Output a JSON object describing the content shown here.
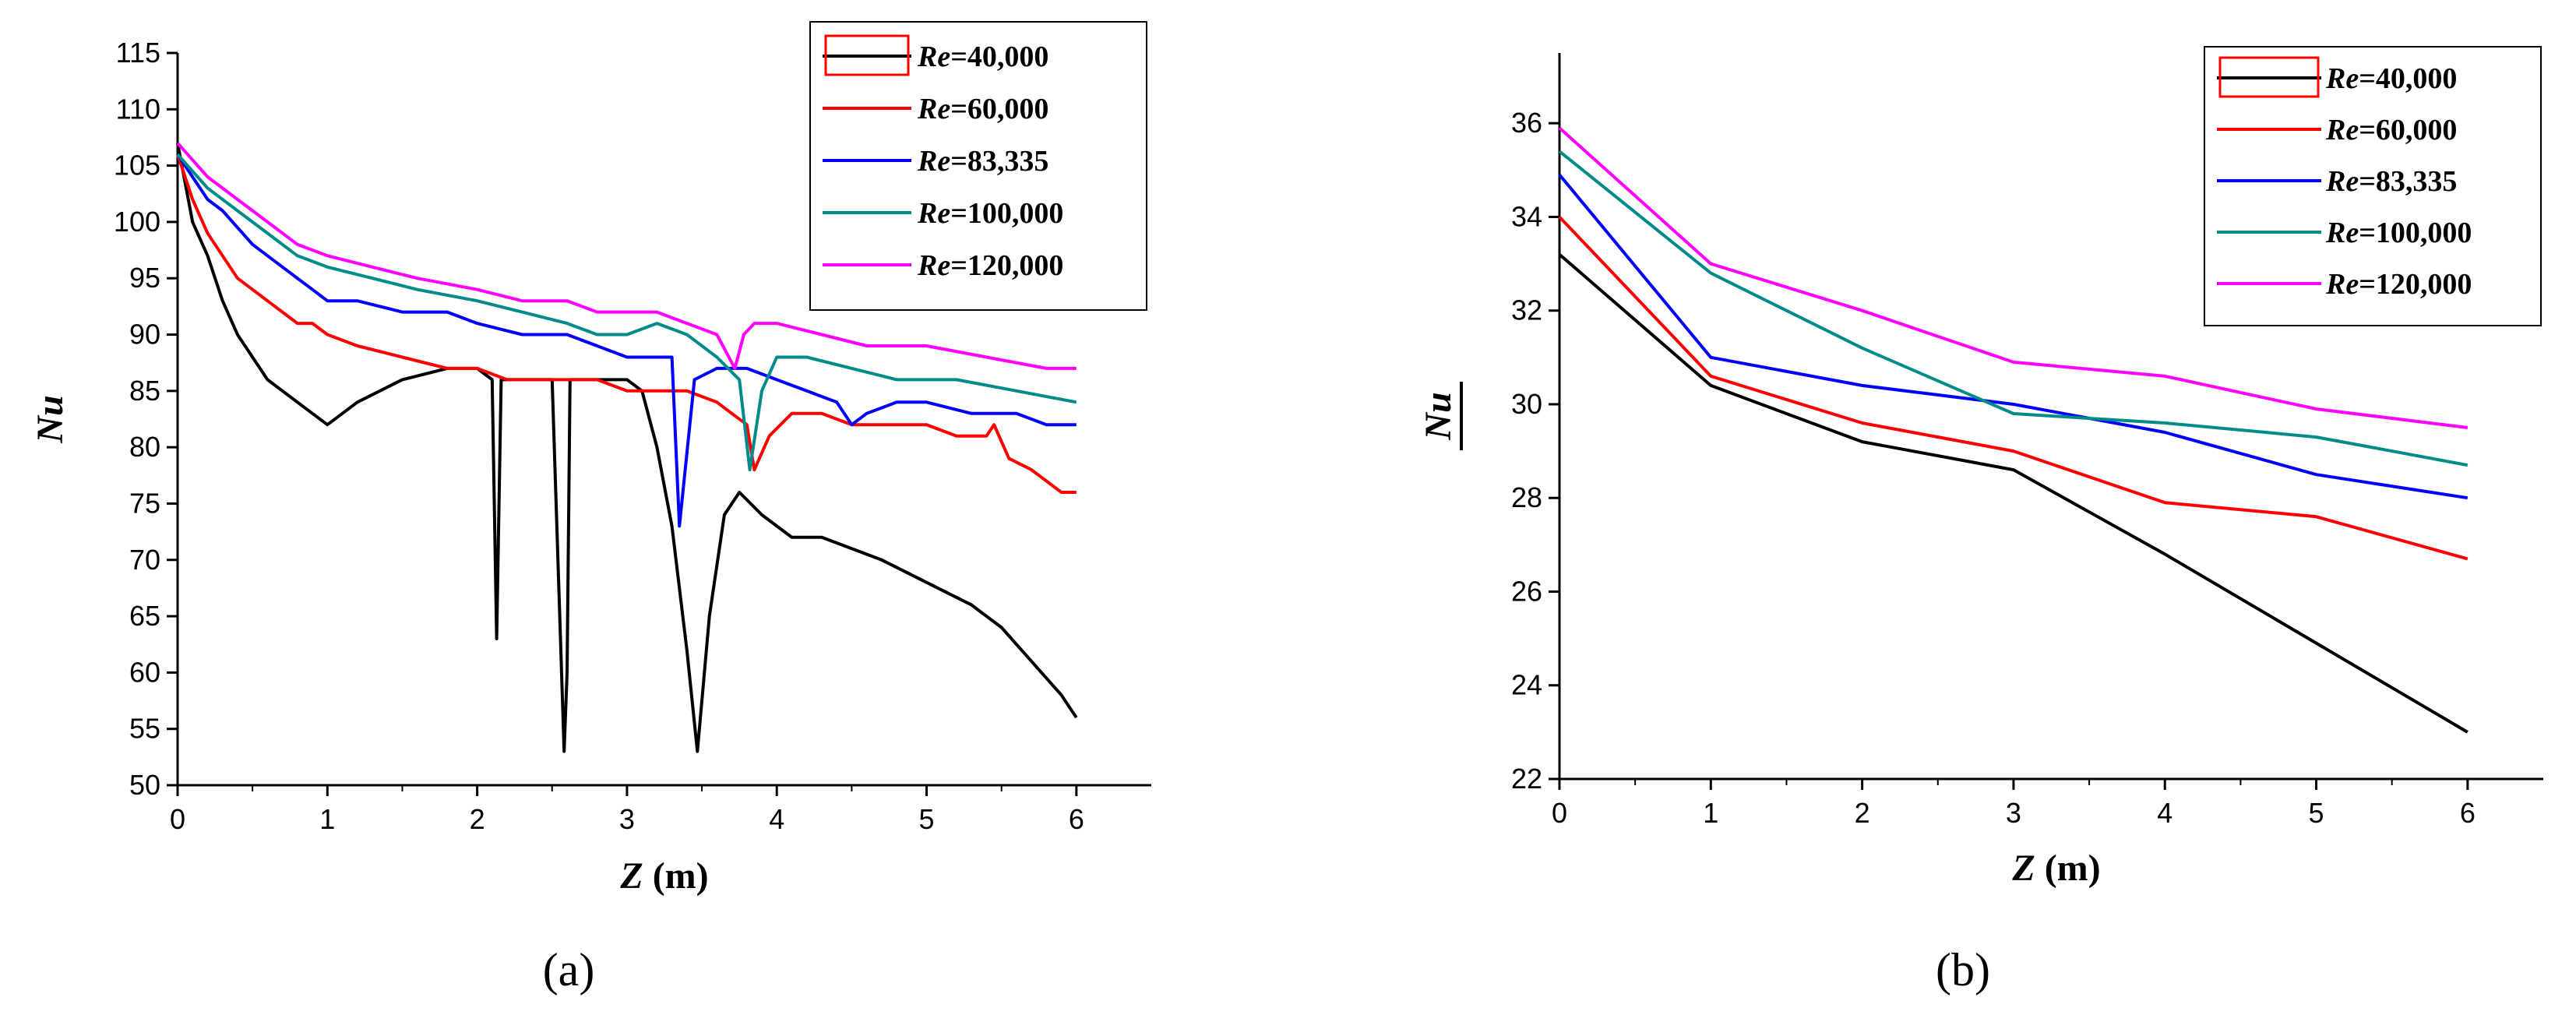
{
  "chart_data": [
    {
      "type": "line",
      "panel": "a",
      "caption": "(a)",
      "xlabel_var": "Z",
      "xlabel_unit": " (m)",
      "ylabel": "Nu",
      "ylabel_overline": false,
      "xlim": [
        0,
        6.5
      ],
      "ylim": [
        50,
        115
      ],
      "xticks": [
        0,
        1,
        2,
        3,
        4,
        5,
        6
      ],
      "yticks": [
        50,
        55,
        60,
        65,
        70,
        75,
        80,
        85,
        90,
        95,
        100,
        105,
        110,
        115
      ],
      "legend_position": "top-right",
      "series": [
        {
          "name_var": "Re",
          "name_val": "=40,000",
          "color": "#000000",
          "x": [
            0,
            0.1,
            0.2,
            0.3,
            0.4,
            0.5,
            0.6,
            0.7,
            0.8,
            0.9,
            1.0,
            1.2,
            1.5,
            1.8,
            2.0,
            2.1,
            2.13,
            2.16,
            2.3,
            2.5,
            2.58,
            2.6,
            2.62,
            2.7,
            2.9,
            3.0,
            3.1,
            3.2,
            3.3,
            3.4,
            3.47,
            3.55,
            3.65,
            3.75,
            3.9,
            4.1,
            4.3,
            4.5,
            4.7,
            5.0,
            5.3,
            5.5,
            5.7,
            5.9,
            6.0
          ],
          "y": [
            107,
            100,
            97,
            93,
            90,
            88,
            86,
            85,
            84,
            83,
            82,
            84,
            86,
            87,
            87,
            86,
            63,
            86,
            86,
            86,
            53,
            60,
            86,
            86,
            86,
            86,
            85,
            80,
            73,
            62,
            53,
            65,
            74,
            76,
            74,
            72,
            72,
            71,
            70,
            68,
            66,
            64,
            61,
            58,
            56
          ]
        },
        {
          "name_var": "Re",
          "name_val": "=60,000",
          "color": "#ff0000",
          "x": [
            0,
            0.1,
            0.2,
            0.3,
            0.4,
            0.5,
            0.6,
            0.7,
            0.8,
            0.9,
            1.0,
            1.2,
            1.5,
            1.8,
            2.0,
            2.2,
            2.5,
            2.8,
            3.0,
            3.2,
            3.4,
            3.6,
            3.7,
            3.8,
            3.85,
            3.95,
            4.1,
            4.3,
            4.5,
            4.8,
            5.0,
            5.2,
            5.4,
            5.45,
            5.55,
            5.7,
            5.9,
            6.0
          ],
          "y": [
            106,
            102,
            99,
            97,
            95,
            94,
            93,
            92,
            91,
            91,
            90,
            89,
            88,
            87,
            87,
            86,
            86,
            86,
            85,
            85,
            85,
            84,
            83,
            82,
            78,
            81,
            83,
            83,
            82,
            82,
            82,
            81,
            81,
            82,
            79,
            78,
            76,
            76
          ]
        },
        {
          "name_var": "Re",
          "name_val": "=83,335",
          "color": "#0000ff",
          "x": [
            0,
            0.1,
            0.2,
            0.3,
            0.5,
            0.7,
            0.9,
            1.0,
            1.2,
            1.5,
            1.8,
            2.0,
            2.3,
            2.6,
            2.8,
            3.0,
            3.2,
            3.3,
            3.35,
            3.45,
            3.6,
            3.8,
            4.0,
            4.2,
            4.4,
            4.5,
            4.6,
            4.8,
            5.0,
            5.3,
            5.6,
            5.8,
            6.0
          ],
          "y": [
            106,
            104,
            102,
            101,
            98,
            96,
            94,
            93,
            93,
            92,
            92,
            91,
            90,
            90,
            89,
            88,
            88,
            88,
            73,
            86,
            87,
            87,
            86,
            85,
            84,
            82,
            83,
            84,
            84,
            83,
            83,
            82,
            82
          ]
        },
        {
          "name_var": "Re",
          "name_val": "=100,000",
          "color": "#008b8b",
          "x": [
            0,
            0.2,
            0.4,
            0.6,
            0.8,
            1.0,
            1.3,
            1.6,
            2.0,
            2.3,
            2.6,
            2.8,
            3.0,
            3.2,
            3.4,
            3.6,
            3.75,
            3.82,
            3.9,
            4.0,
            4.2,
            4.5,
            4.8,
            5.2,
            5.6,
            6.0
          ],
          "y": [
            106,
            103,
            101,
            99,
            97,
            96,
            95,
            94,
            93,
            92,
            91,
            90,
            90,
            91,
            90,
            88,
            86,
            78,
            85,
            88,
            88,
            87,
            86,
            86,
            85,
            84
          ]
        },
        {
          "name_var": "Re",
          "name_val": "=120,000",
          "color": "#ff00ff",
          "x": [
            0,
            0.2,
            0.4,
            0.6,
            0.8,
            1.0,
            1.3,
            1.6,
            2.0,
            2.3,
            2.6,
            2.8,
            3.0,
            3.2,
            3.4,
            3.6,
            3.72,
            3.78,
            3.85,
            4.0,
            4.3,
            4.6,
            5.0,
            5.4,
            5.8,
            6.0
          ],
          "y": [
            107,
            104,
            102,
            100,
            98,
            97,
            96,
            95,
            94,
            93,
            93,
            92,
            92,
            92,
            91,
            90,
            87,
            90,
            91,
            91,
            90,
            89,
            89,
            88,
            87,
            87
          ]
        }
      ]
    },
    {
      "type": "line",
      "panel": "b",
      "caption": "(b)",
      "xlabel_var": "Z",
      "xlabel_unit": " (m)",
      "ylabel": "Nu",
      "ylabel_overline": true,
      "xlim": [
        0,
        6.5
      ],
      "ylim": [
        22,
        37.5
      ],
      "xticks": [
        0,
        1,
        2,
        3,
        4,
        5,
        6
      ],
      "yticks": [
        22,
        24,
        26,
        28,
        30,
        32,
        34,
        36
      ],
      "legend_position": "top-right",
      "series": [
        {
          "name_var": "Re",
          "name_val": "=40,000",
          "color": "#000000",
          "x": [
            0,
            1,
            2,
            3,
            4,
            5,
            6
          ],
          "y": [
            33.2,
            30.4,
            29.2,
            28.6,
            26.8,
            24.9,
            23.0
          ]
        },
        {
          "name_var": "Re",
          "name_val": "=60,000",
          "color": "#ff0000",
          "x": [
            0,
            1,
            2,
            3,
            4,
            5,
            6
          ],
          "y": [
            34.0,
            30.6,
            29.6,
            29.0,
            27.9,
            27.6,
            26.7
          ]
        },
        {
          "name_var": "Re",
          "name_val": "=83,335",
          "color": "#0000ff",
          "x": [
            0,
            1,
            2,
            3,
            4,
            5,
            6
          ],
          "y": [
            34.9,
            31.0,
            30.4,
            30.0,
            29.4,
            28.5,
            28.0
          ]
        },
        {
          "name_var": "Re",
          "name_val": "=100,000",
          "color": "#008b8b",
          "x": [
            0,
            1,
            2,
            3,
            4,
            5,
            6
          ],
          "y": [
            35.4,
            32.8,
            31.2,
            29.8,
            29.6,
            29.3,
            28.7
          ]
        },
        {
          "name_var": "Re",
          "name_val": "=120,000",
          "color": "#ff00ff",
          "x": [
            0,
            1,
            2,
            3,
            4,
            5,
            6
          ],
          "y": [
            35.9,
            33.0,
            32.0,
            30.9,
            30.6,
            29.9,
            29.5
          ]
        }
      ]
    }
  ]
}
